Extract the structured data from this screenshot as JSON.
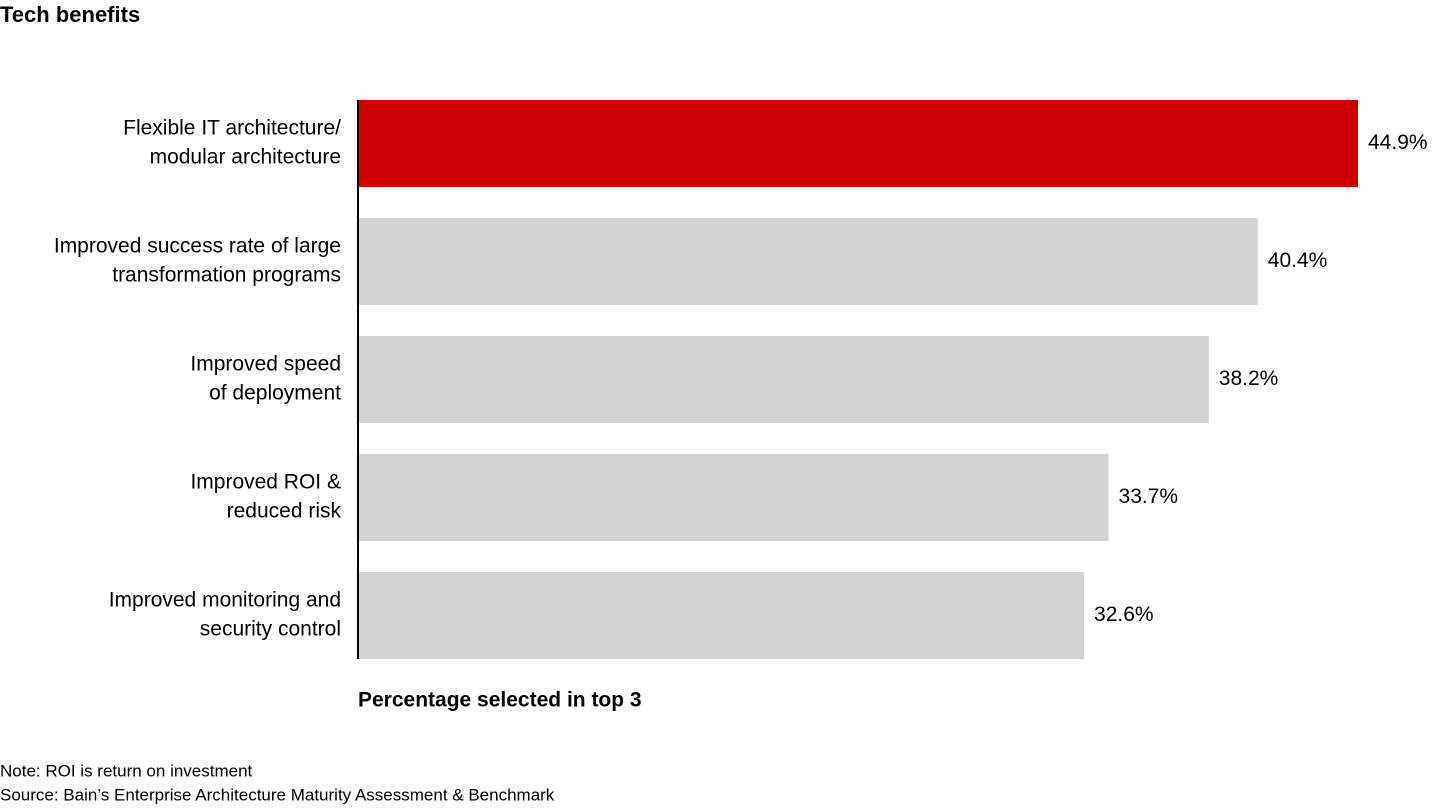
{
  "chart_data": {
    "type": "bar",
    "orientation": "horizontal",
    "title": "Tech benefits",
    "categories": [
      [
        "Flexible IT architecture/",
        "modular architecture"
      ],
      [
        "Improved success rate of large",
        "transformation programs"
      ],
      [
        "Improved speed",
        "of deployment"
      ],
      [
        "Improved ROI &",
        "reduced risk"
      ],
      [
        "Improved monitoring and",
        "security control"
      ]
    ],
    "values": [
      44.9,
      40.4,
      38.2,
      33.7,
      32.6
    ],
    "value_labels": [
      "44.9%",
      "40.4%",
      "38.2%",
      "33.7%",
      "32.6%"
    ],
    "colors": [
      "#cc0000",
      "#d3d3d3",
      "#d3d3d3",
      "#d3d3d3",
      "#d3d3d3"
    ],
    "x_label": "Percentage selected in top 3",
    "note": "Note: ROI is return on investment",
    "source": "Source: Bain’s Enterprise Architecture Maturity Assessment & Benchmark"
  }
}
